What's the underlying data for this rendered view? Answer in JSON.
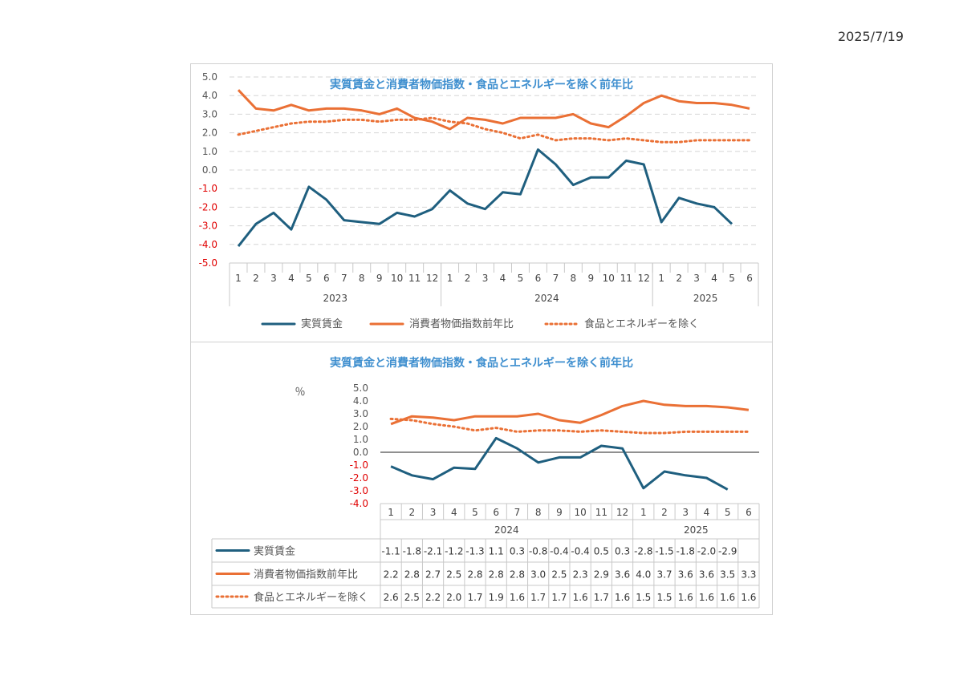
{
  "date": "2025/7/19",
  "legend": {
    "wage": "実質賃金",
    "cpi": "消費者物価指数前年比",
    "core": "食品とエネルギーを除く"
  },
  "colors": {
    "wage": "#1f5f7f",
    "cpi": "#ea7035",
    "core": "#ea7035",
    "title": "#3f8fcf",
    "negative_tick": "#e00000"
  },
  "chart_data": [
    {
      "type": "line",
      "title": "実質賃金と消費者物価指数・食品とエネルギーを除く前年比",
      "ylim": [
        -5.0,
        5.0
      ],
      "yticks": [
        "5.0",
        "4.0",
        "3.0",
        "2.0",
        "1.0",
        "0.0",
        "-1.0",
        "-2.0",
        "-3.0",
        "-4.0",
        "-5.0"
      ],
      "grid": true,
      "legend_position": "bottom",
      "categories": [
        "1",
        "2",
        "3",
        "4",
        "5",
        "6",
        "7",
        "8",
        "9",
        "10",
        "11",
        "12",
        "1",
        "2",
        "3",
        "4",
        "5",
        "6",
        "7",
        "8",
        "9",
        "10",
        "11",
        "12",
        "1",
        "2",
        "3",
        "4",
        "5",
        "6"
      ],
      "groups": [
        {
          "label": "2023",
          "count": 12
        },
        {
          "label": "2024",
          "count": 12
        },
        {
          "label": "2025",
          "count": 6
        }
      ],
      "series": [
        {
          "name": "実質賃金",
          "style": "solid",
          "values": [
            -4.1,
            -2.9,
            -2.3,
            -3.2,
            -0.9,
            -1.6,
            -2.7,
            -2.8,
            -2.9,
            -2.3,
            -2.5,
            -2.1,
            -1.1,
            -1.8,
            -2.1,
            -1.2,
            -1.3,
            1.1,
            0.3,
            -0.8,
            -0.4,
            -0.4,
            0.5,
            0.3,
            -2.8,
            -1.5,
            -1.8,
            -2.0,
            -2.9,
            null
          ]
        },
        {
          "name": "消費者物価指数前年比",
          "style": "solid",
          "values": [
            4.3,
            3.3,
            3.2,
            3.5,
            3.2,
            3.3,
            3.3,
            3.2,
            3.0,
            3.3,
            2.8,
            2.6,
            2.2,
            2.8,
            2.7,
            2.5,
            2.8,
            2.8,
            2.8,
            3.0,
            2.5,
            2.3,
            2.9,
            3.6,
            4.0,
            3.7,
            3.6,
            3.6,
            3.5,
            3.3
          ]
        },
        {
          "name": "食品とエネルギーを除く",
          "style": "dotted",
          "values": [
            1.9,
            2.1,
            2.3,
            2.5,
            2.6,
            2.6,
            2.7,
            2.7,
            2.6,
            2.7,
            2.7,
            2.8,
            2.6,
            2.5,
            2.2,
            2.0,
            1.7,
            1.9,
            1.6,
            1.7,
            1.7,
            1.6,
            1.7,
            1.6,
            1.5,
            1.5,
            1.6,
            1.6,
            1.6,
            1.6
          ]
        }
      ]
    },
    {
      "type": "line",
      "title": "実質賃金と消費者物価指数・食品とエネルギーを除く前年比",
      "ylabel": "％",
      "ylim": [
        -4.0,
        5.0
      ],
      "yticks": [
        "5.0",
        "4.0",
        "3.0",
        "2.0",
        "1.0",
        "0.0",
        "-1.0",
        "-2.0",
        "-3.0",
        "-4.0"
      ],
      "grid": false,
      "legend_position": "data-table",
      "categories": [
        "1",
        "2",
        "3",
        "4",
        "5",
        "6",
        "7",
        "8",
        "9",
        "10",
        "11",
        "12",
        "1",
        "2",
        "3",
        "4",
        "5",
        "6"
      ],
      "groups": [
        {
          "label": "2024",
          "count": 12
        },
        {
          "label": "2025",
          "count": 6
        }
      ],
      "series": [
        {
          "name": "実質賃金",
          "style": "solid",
          "values": [
            -1.1,
            -1.8,
            -2.1,
            -1.2,
            -1.3,
            1.1,
            0.3,
            -0.8,
            -0.4,
            -0.4,
            0.5,
            0.3,
            -2.8,
            -1.5,
            -1.8,
            -2.0,
            -2.9,
            null
          ],
          "labels": [
            "-1.1",
            "-1.8",
            "-2.1",
            "-1.2",
            "-1.3",
            "1.1",
            "0.3",
            "-0.8",
            "-0.4",
            "-0.4",
            "0.5",
            "0.3",
            "-2.8",
            "-1.5",
            "-1.8",
            "-2.0",
            "-2.9",
            ""
          ]
        },
        {
          "name": "消費者物価指数前年比",
          "style": "solid",
          "values": [
            2.2,
            2.8,
            2.7,
            2.5,
            2.8,
            2.8,
            2.8,
            3.0,
            2.5,
            2.3,
            2.9,
            3.6,
            4.0,
            3.7,
            3.6,
            3.6,
            3.5,
            3.3
          ],
          "labels": [
            "2.2",
            "2.8",
            "2.7",
            "2.5",
            "2.8",
            "2.8",
            "2.8",
            "3.0",
            "2.5",
            "2.3",
            "2.9",
            "3.6",
            "4.0",
            "3.7",
            "3.6",
            "3.6",
            "3.5",
            "3.3"
          ]
        },
        {
          "name": "食品とエネルギーを除く",
          "style": "dotted",
          "values": [
            2.6,
            2.5,
            2.2,
            2.0,
            1.7,
            1.9,
            1.6,
            1.7,
            1.7,
            1.6,
            1.7,
            1.6,
            1.5,
            1.5,
            1.6,
            1.6,
            1.6,
            1.6
          ],
          "labels": [
            "2.6",
            "2.5",
            "2.2",
            "2.0",
            "1.7",
            "1.9",
            "1.6",
            "1.7",
            "1.7",
            "1.6",
            "1.7",
            "1.6",
            "1.5",
            "1.5",
            "1.6",
            "1.6",
            "1.6",
            "1.6"
          ]
        }
      ]
    }
  ]
}
